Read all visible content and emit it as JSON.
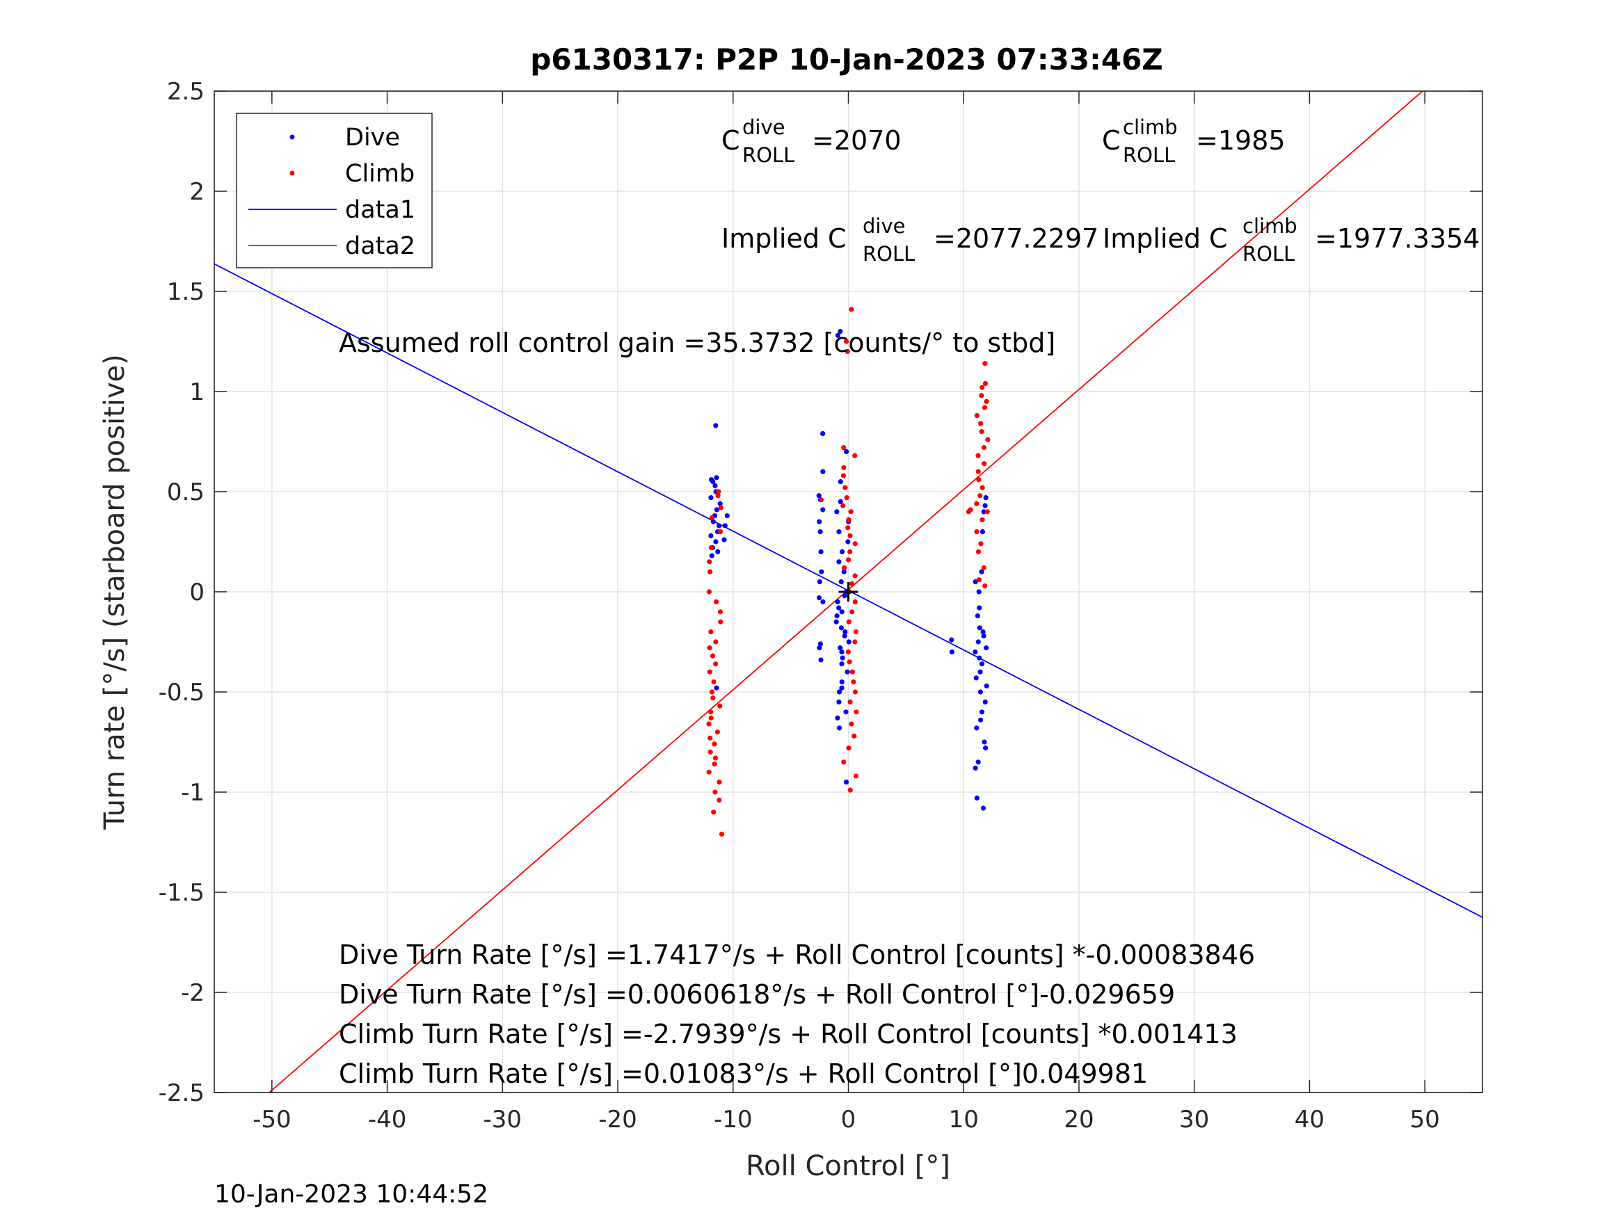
{
  "chart_data": {
    "type": "scatter",
    "title": "p6130317: P2P 10-Jan-2023 07:33:46Z",
    "xlabel": "Roll Control [°]",
    "ylabel": "Turn rate [°/s] (starboard positive)",
    "xlim": [
      -55,
      55
    ],
    "ylim": [
      -2.5,
      2.5
    ],
    "x_ticks": [
      -50,
      -40,
      -30,
      -20,
      -10,
      0,
      10,
      20,
      30,
      40,
      50
    ],
    "x_tick_labels": [
      "-50",
      "-40",
      "-30",
      "-20",
      "-10",
      "0",
      "10",
      "20",
      "30",
      "40",
      "50"
    ],
    "y_ticks": [
      -2.5,
      -2,
      -1.5,
      -1,
      -0.5,
      0,
      0.5,
      1,
      1.5,
      2,
      2.5
    ],
    "y_tick_labels": [
      "-2.5",
      "-2",
      "-1.5",
      "-1",
      "-0.5",
      "0",
      "0.5",
      "1",
      "1.5",
      "2",
      "2.5"
    ],
    "grid": true,
    "legend_position": "top-left",
    "legend": [
      "Dive",
      "Climb",
      "data1",
      "data2"
    ],
    "series": [
      {
        "name": "Dive",
        "kind": "points",
        "color": "#0000ff",
        "clusters": [
          {
            "x": -11.5,
            "x_spread": 0.5,
            "y_values": [
              0.83,
              0.57,
              0.56,
              0.55,
              0.53,
              0.5,
              0.47,
              0.44,
              0.41,
              0.38,
              0.35,
              0.33,
              0.3,
              0.28,
              0.25,
              0.22,
              0.2,
              0.18,
              -0.48
            ]
          },
          {
            "x": -10.5,
            "x_spread": 0.3,
            "y_values": [
              0.38,
              0.33,
              0.26
            ]
          },
          {
            "x": -2.4,
            "x_spread": 0.2,
            "y_values": [
              0.79,
              0.6,
              0.48,
              0.46,
              0.41,
              0.35,
              0.3,
              0.2,
              0.1,
              0.05,
              -0.03,
              -0.05,
              -0.26,
              -0.28,
              -0.34
            ]
          },
          {
            "x": -0.5,
            "x_spread": 0.6,
            "y_values": [
              1.3,
              1.28,
              0.7,
              0.55,
              0.45,
              0.4,
              0.35,
              0.3,
              0.25,
              0.2,
              0.15,
              0.1,
              0.05,
              0.0,
              -0.02,
              -0.05,
              -0.08,
              -0.1,
              -0.12,
              -0.15,
              -0.18,
              -0.2,
              -0.22,
              -0.25,
              -0.28,
              -0.3,
              -0.33,
              -0.36,
              -0.4,
              -0.45,
              -0.48,
              -0.5,
              -0.55,
              -0.6,
              -0.63,
              -0.68,
              -0.95
            ]
          },
          {
            "x": 8.8,
            "x_spread": 0.2,
            "y_values": [
              -0.24,
              -0.3
            ]
          },
          {
            "x": 11.5,
            "x_spread": 0.5,
            "y_values": [
              0.47,
              0.43,
              0.4,
              0.3,
              0.1,
              0.05,
              0.0,
              -0.08,
              -0.12,
              -0.18,
              -0.2,
              -0.22,
              -0.25,
              -0.28,
              -0.3,
              -0.33,
              -0.36,
              -0.4,
              -0.43,
              -0.47,
              -0.5,
              -0.55,
              -0.6,
              -0.64,
              -0.68,
              -0.75,
              -0.78,
              -0.85,
              -0.88,
              -1.03,
              -1.08
            ]
          }
        ]
      },
      {
        "name": "Climb",
        "kind": "points",
        "color": "#ff0000",
        "clusters": [
          {
            "x": -11.5,
            "x_spread": 0.6,
            "y_values": [
              0.5,
              0.48,
              0.42,
              0.37,
              0.3,
              0.22,
              0.15,
              0.1,
              0.0,
              -0.05,
              -0.1,
              -0.15,
              -0.2,
              -0.25,
              -0.28,
              -0.32,
              -0.36,
              -0.4,
              -0.45,
              -0.5,
              -0.53,
              -0.57,
              -0.6,
              -0.63,
              -0.66,
              -0.7,
              -0.73,
              -0.76,
              -0.8,
              -0.83,
              -0.86,
              -0.9,
              -0.95,
              -1.0,
              -1.04,
              -1.1,
              -1.21
            ]
          },
          {
            "x": -2.4,
            "x_spread": 0.1,
            "y_values": [
              0.46
            ]
          },
          {
            "x": 0.1,
            "x_spread": 0.6,
            "y_values": [
              1.41,
              1.25,
              1.2,
              0.72,
              0.68,
              0.62,
              0.58,
              0.52,
              0.47,
              0.43,
              0.4,
              0.36,
              0.32,
              0.28,
              0.24,
              0.2,
              0.16,
              0.12,
              0.08,
              0.04,
              0.0,
              -0.05,
              -0.1,
              -0.15,
              -0.2,
              -0.25,
              -0.3,
              -0.35,
              -0.4,
              -0.45,
              -0.5,
              -0.55,
              -0.6,
              -0.66,
              -0.72,
              -0.78,
              -0.85,
              -0.92,
              -0.99
            ]
          },
          {
            "x": 10.5,
            "x_spread": 0.3,
            "y_values": [
              0.41,
              0.4
            ]
          },
          {
            "x": 11.6,
            "x_spread": 0.5,
            "y_values": [
              1.14,
              1.04,
              1.02,
              0.98,
              0.95,
              0.92,
              0.88,
              0.84,
              0.8,
              0.76,
              0.72,
              0.68,
              0.64,
              0.6,
              0.56,
              0.52,
              0.48,
              0.44,
              0.4,
              0.36,
              0.3,
              0.24,
              0.2,
              0.12,
              0.06,
              0.03
            ]
          }
        ]
      },
      {
        "name": "data1",
        "kind": "line",
        "color": "#0000ff",
        "slope": -0.029659,
        "intercept": 0.0060618
      },
      {
        "name": "data2",
        "kind": "line",
        "color": "#ff0000",
        "slope": 0.049981,
        "intercept": 0.01083
      }
    ],
    "annotations": {
      "c_dive": {
        "base": "C",
        "sup": "dive",
        "sub": "ROLL",
        "value": "=2070"
      },
      "c_climb": {
        "base": "C",
        "sup": "climb",
        "sub": "ROLL",
        "value": "=1985"
      },
      "implied_dive": {
        "base": "Implied C",
        "sup": "dive",
        "sub": "ROLL",
        "value": "=2077.2297"
      },
      "implied_climb": {
        "base": "Implied C",
        "sup": "climb",
        "sub": "ROLL",
        "value": "=1977.3354"
      },
      "gain": "Assumed roll control gain =35.3732 [counts/° to stbd]",
      "equations": [
        "Dive Turn Rate [°/s] =1.7417°/s + Roll Control [counts] *-0.00083846",
        "Dive Turn Rate [°/s] =0.0060618°/s + Roll Control [°]-0.029659",
        "Climb Turn Rate [°/s] =-2.7939°/s + Roll Control [counts] *0.001413",
        "Climb Turn Rate [°/s] =0.01083°/s + Roll Control [°]0.049981"
      ]
    },
    "crosshair": {
      "x": 0,
      "y": 0
    }
  },
  "footer": {
    "timestamp": "10-Jan-2023 10:44:52"
  }
}
